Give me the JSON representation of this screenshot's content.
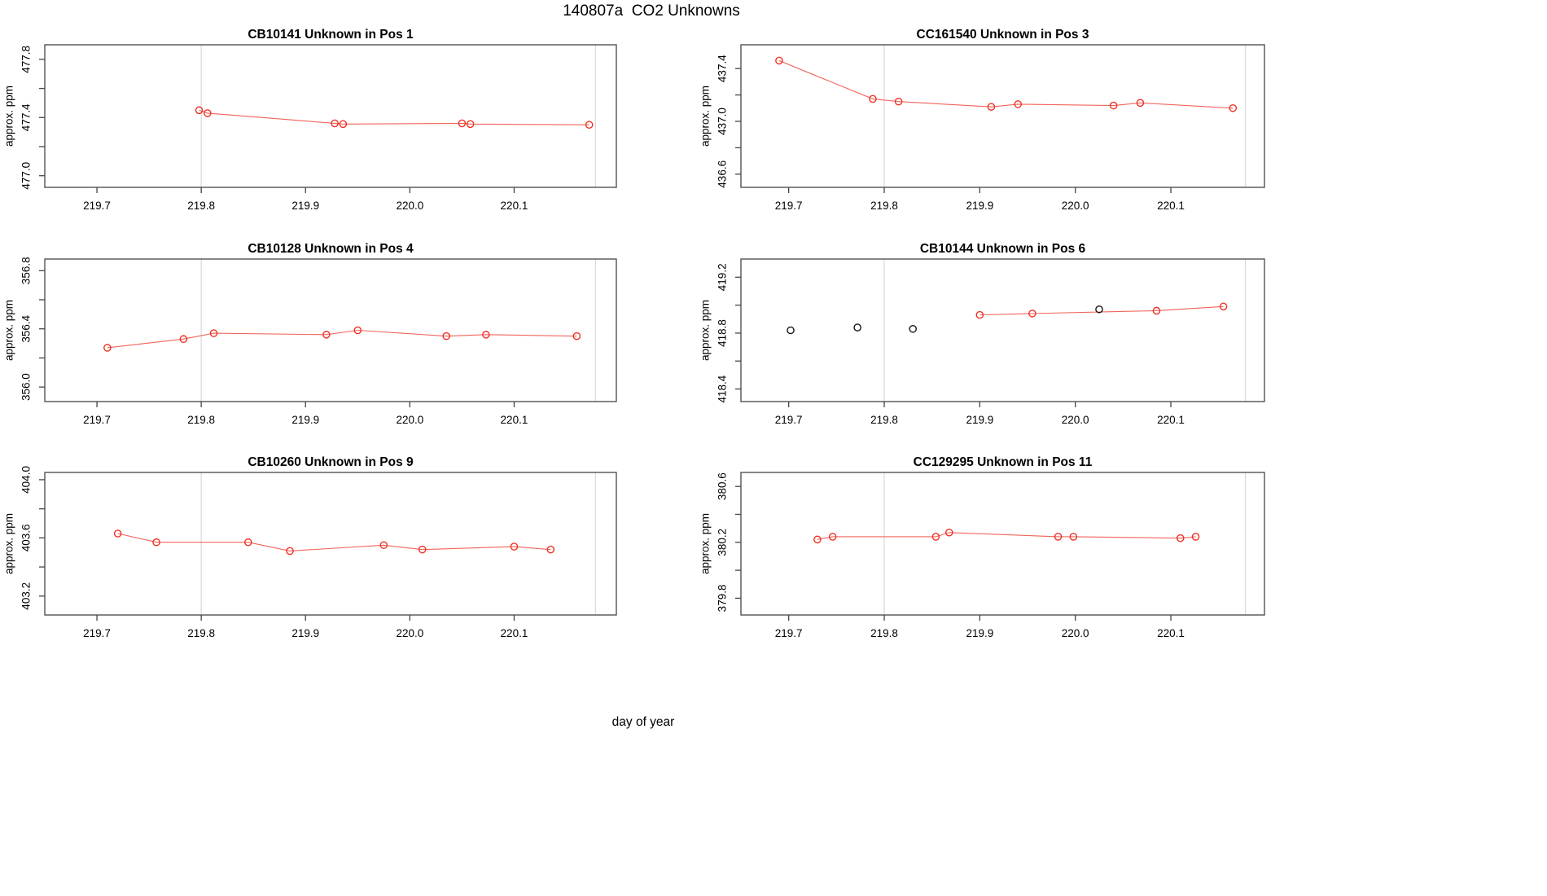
{
  "page": {
    "title": "140807a  CO2 Unknowns",
    "xlabel": "day of year"
  },
  "style": {
    "series_color": "#ee3226",
    "line_color": "#f05348",
    "black_point_color": "#151515",
    "grid_color": "#d9d9d9",
    "axis_color": "#454545",
    "text_color": "#000000",
    "background": "#ffffff"
  },
  "axes": {
    "xlim": [
      219.65,
      220.198
    ],
    "xticks": [
      219.7,
      219.8,
      219.9,
      220.0,
      220.1
    ],
    "xtick_labels": [
      "219.7",
      "219.8",
      "219.9",
      "220.0",
      "220.1"
    ],
    "gridlines_x": [
      219.8,
      220.178
    ],
    "ylabel": "approx. ppm"
  },
  "chart_data": [
    {
      "type": "line",
      "id": "CB10141",
      "title": "CB10141    Unknown in Pos 1",
      "sample": "CB10141",
      "position": "Pos 1",
      "ylim": [
        476.92,
        477.9
      ],
      "yticks": [
        477.0,
        477.2,
        477.4,
        477.6,
        477.8
      ],
      "ylabels": [
        {
          "v": 477.0,
          "t": "477.0"
        },
        {
          "v": 477.4,
          "t": "477.4"
        },
        {
          "v": 477.8,
          "t": "477.8"
        }
      ],
      "series": [
        {
          "name": "red-line",
          "connected": true,
          "color": "red",
          "points": [
            [
              219.798,
              477.45
            ],
            [
              219.806,
              477.43
            ],
            [
              219.928,
              477.36
            ],
            [
              219.936,
              477.355
            ],
            [
              220.05,
              477.36
            ],
            [
              220.058,
              477.355
            ],
            [
              220.172,
              477.35
            ]
          ]
        }
      ]
    },
    {
      "type": "line",
      "id": "CC161540",
      "title": "CC161540    Unknown in Pos 3",
      "sample": "CC161540",
      "position": "Pos 3",
      "ylim": [
        436.5,
        437.58
      ],
      "yticks": [
        436.6,
        436.8,
        437.0,
        437.2,
        437.4
      ],
      "ylabels": [
        {
          "v": 436.6,
          "t": "436.6"
        },
        {
          "v": 437.0,
          "t": "437.0"
        },
        {
          "v": 437.4,
          "t": "437.4"
        }
      ],
      "series": [
        {
          "name": "red-line",
          "connected": true,
          "color": "red",
          "points": [
            [
              219.69,
              437.46
            ],
            [
              219.788,
              437.17
            ],
            [
              219.815,
              437.15
            ],
            [
              219.912,
              437.11
            ],
            [
              219.94,
              437.13
            ],
            [
              220.04,
              437.12
            ],
            [
              220.068,
              437.14
            ],
            [
              220.165,
              437.1
            ]
          ]
        }
      ]
    },
    {
      "type": "line",
      "id": "CB10128",
      "title": "CB10128    Unknown in Pos 4",
      "sample": "CB10128",
      "position": "Pos 4",
      "ylim": [
        355.9,
        356.88
      ],
      "yticks": [
        356.0,
        356.2,
        356.4,
        356.6,
        356.8
      ],
      "ylabels": [
        {
          "v": 356.0,
          "t": "356.0"
        },
        {
          "v": 356.4,
          "t": "356.4"
        },
        {
          "v": 356.8,
          "t": "356.8"
        }
      ],
      "series": [
        {
          "name": "red-line",
          "connected": true,
          "color": "red",
          "points": [
            [
              219.71,
              356.27
            ],
            [
              219.783,
              356.33
            ],
            [
              219.812,
              356.37
            ],
            [
              219.92,
              356.36
            ],
            [
              219.95,
              356.39
            ],
            [
              220.035,
              356.35
            ],
            [
              220.073,
              356.36
            ],
            [
              220.16,
              356.35
            ]
          ]
        }
      ]
    },
    {
      "type": "line",
      "id": "CB10144",
      "title": "CB10144    Unknown in Pos 6",
      "sample": "CB10144",
      "position": "Pos 6",
      "ylim": [
        418.31,
        419.33
      ],
      "yticks": [
        418.4,
        418.6,
        418.8,
        419.0,
        419.2
      ],
      "ylabels": [
        {
          "v": 418.4,
          "t": "418.4"
        },
        {
          "v": 418.8,
          "t": "418.8"
        },
        {
          "v": 419.2,
          "t": "419.2"
        }
      ],
      "series": [
        {
          "name": "red-line",
          "connected": true,
          "color": "red",
          "points": [
            [
              219.9,
              418.93
            ],
            [
              219.955,
              418.94
            ],
            [
              220.085,
              418.96
            ],
            [
              220.155,
              418.99
            ]
          ]
        },
        {
          "name": "black-points",
          "connected": false,
          "color": "black",
          "points": [
            [
              219.702,
              418.82
            ],
            [
              219.772,
              418.84
            ],
            [
              219.83,
              418.83
            ],
            [
              220.025,
              418.97
            ]
          ]
        }
      ]
    },
    {
      "type": "line",
      "id": "CB10260",
      "title": "CB10260    Unknown in Pos 9",
      "sample": "CB10260",
      "position": "Pos 9",
      "ylim": [
        403.07,
        404.05
      ],
      "yticks": [
        403.2,
        403.4,
        403.6,
        403.8,
        404.0
      ],
      "ylabels": [
        {
          "v": 403.2,
          "t": "403.2"
        },
        {
          "v": 403.6,
          "t": "403.6"
        },
        {
          "v": 404.0,
          "t": "404.0"
        }
      ],
      "series": [
        {
          "name": "red-line",
          "connected": true,
          "color": "red",
          "points": [
            [
              219.72,
              403.63
            ],
            [
              219.757,
              403.57
            ],
            [
              219.845,
              403.57
            ],
            [
              219.885,
              403.51
            ],
            [
              219.975,
              403.55
            ],
            [
              220.012,
              403.52
            ],
            [
              220.1,
              403.54
            ],
            [
              220.135,
              403.52
            ]
          ]
        }
      ]
    },
    {
      "type": "line",
      "id": "CC129295",
      "title": "CC129295    Unknown in Pos 11",
      "sample": "CC129295",
      "position": "Pos 11",
      "ylim": [
        379.68,
        380.7
      ],
      "yticks": [
        379.8,
        380.0,
        380.2,
        380.4,
        380.6
      ],
      "ylabels": [
        {
          "v": 379.8,
          "t": "379.8"
        },
        {
          "v": 380.2,
          "t": "380.2"
        },
        {
          "v": 380.6,
          "t": "380.6"
        }
      ],
      "series": [
        {
          "name": "red-line",
          "connected": true,
          "color": "red",
          "points": [
            [
              219.73,
              380.22
            ],
            [
              219.746,
              380.24
            ],
            [
              219.854,
              380.24
            ],
            [
              219.868,
              380.27
            ],
            [
              219.982,
              380.24
            ],
            [
              219.998,
              380.24
            ],
            [
              220.11,
              380.23
            ],
            [
              220.126,
              380.24
            ]
          ]
        }
      ]
    }
  ]
}
